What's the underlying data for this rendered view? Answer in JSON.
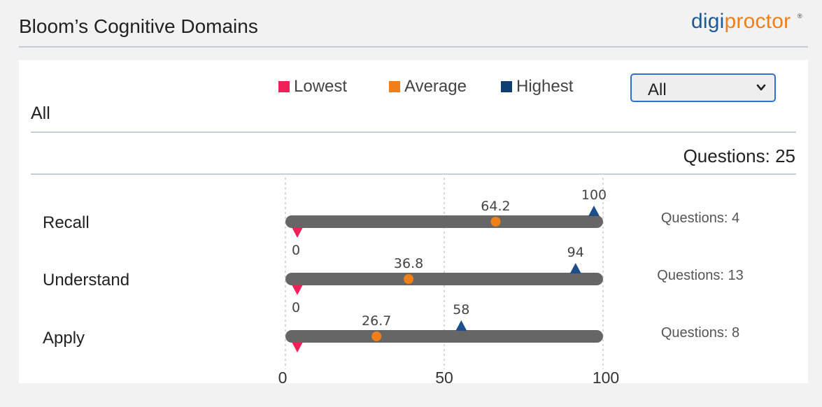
{
  "header": {
    "title": "Bloom’s Cognitive Domains",
    "logo_part1": "digi",
    "logo_part2": "proctor",
    "logo_mark": "®"
  },
  "legend": [
    {
      "label": "Lowest",
      "color": "#f0205a"
    },
    {
      "label": "Average",
      "color": "#f07f1a"
    },
    {
      "label": "Highest",
      "color": "#0f3e73"
    }
  ],
  "filter": {
    "selected": "All",
    "label": "All"
  },
  "summary": {
    "questions_total": "Questions: 25"
  },
  "chart_data": {
    "type": "range-dot",
    "xlim": [
      0,
      100
    ],
    "x_ticks": [
      "0",
      "50",
      "100"
    ],
    "rows": [
      {
        "label": "Recall",
        "lowest": 0,
        "average": 64.2,
        "highest": 100,
        "lowest_label": "0",
        "average_label": "64.2",
        "highest_label": "100",
        "questions": "Questions: 4"
      },
      {
        "label": "Understand",
        "lowest": 0,
        "average": 36.8,
        "highest": 94,
        "lowest_label": "0",
        "average_label": "36.8",
        "highest_label": "94",
        "questions": "Questions: 13"
      },
      {
        "label": "Apply",
        "lowest": 0,
        "average": 26.7,
        "highest": 58,
        "lowest_label": "",
        "average_label": "26.7",
        "highest_label": "58",
        "questions": "Questions: 8"
      }
    ],
    "colors": {
      "lowest": "#f0205a",
      "average": "#f07f1a",
      "highest": "#1f4e8c",
      "bar": "#666666",
      "grid": "#cccccc"
    }
  }
}
